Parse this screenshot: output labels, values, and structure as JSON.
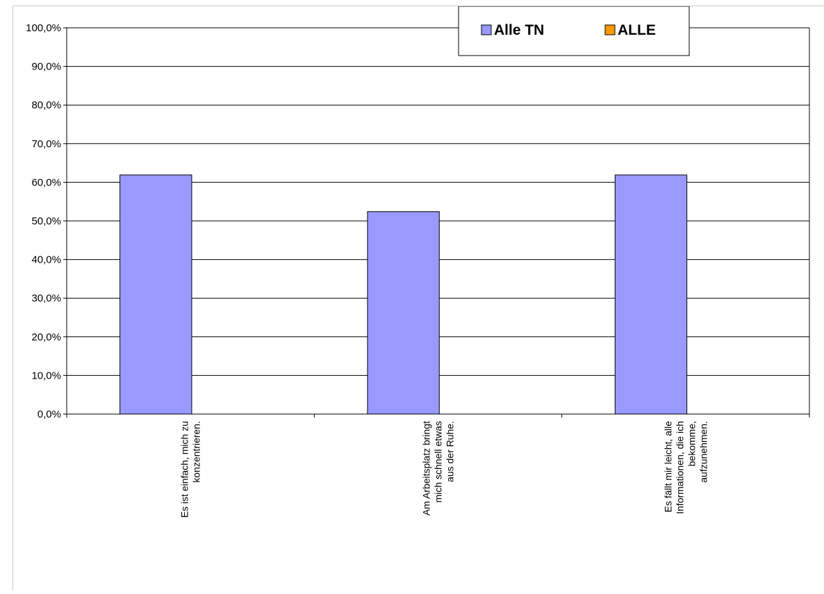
{
  "chart_data": {
    "type": "bar",
    "title": "",
    "xlabel": "",
    "ylabel": "",
    "categories": [
      [
        "Es ist einfach, mich zu",
        "konzentrieren."
      ],
      [
        "Am Arbeitsplatz bringt",
        "mich schnell etwas",
        "aus der Ruhe."
      ],
      [
        "Es fällt mir leicht, alle",
        "Informationen, die ich",
        "bekomme,",
        "aufzunehmen."
      ]
    ],
    "series": [
      {
        "name": "Alle TN",
        "values": [
          61.9,
          52.4,
          61.9
        ],
        "color": "#9999ff"
      },
      {
        "name": "ALLE",
        "values": [
          null,
          null,
          null
        ],
        "color": "#ff9900"
      }
    ],
    "ylim": [
      0,
      100
    ],
    "yticks": [
      0,
      10,
      20,
      30,
      40,
      50,
      60,
      70,
      80,
      90,
      100
    ],
    "ytick_format": "{v},0%",
    "grid": true,
    "legend_position": "top-right"
  }
}
